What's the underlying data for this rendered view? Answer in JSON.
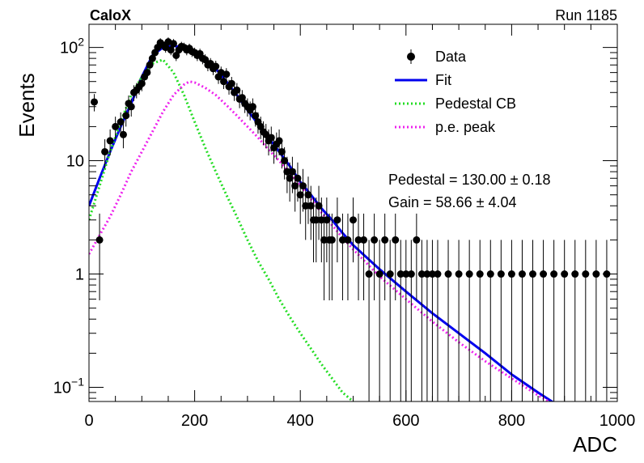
{
  "header": {
    "experiment": "CaloX",
    "run": "Run 1185"
  },
  "chart_data": {
    "type": "scatter",
    "xlabel": "ADC",
    "ylabel": "Events",
    "xlim": [
      0,
      1000
    ],
    "ylim": [
      0.075,
      160
    ],
    "yscale": "log",
    "grid": false,
    "legend_position": "top-right",
    "x_ticks": [
      "0",
      "200",
      "400",
      "600",
      "800",
      "1000"
    ],
    "y_ticks": [
      {
        "value": 100,
        "base": "10",
        "exp": "2"
      },
      {
        "value": 10,
        "label": "10"
      },
      {
        "value": 1,
        "label": "1"
      },
      {
        "value": 0.1,
        "base": "10",
        "exp": "−1"
      }
    ],
    "annotations": [
      "Pedestal = 130.00 ± 0.18",
      "Gain = 58.66 ± 4.04"
    ],
    "legend": [
      {
        "label": "Data",
        "style": "marker",
        "color": "#000000"
      },
      {
        "label": "Fit",
        "style": "solid",
        "color": "#0000ee"
      },
      {
        "label": "Pedestal CB",
        "style": "dotted",
        "color": "#22dd22"
      },
      {
        "label": "p.e. peak",
        "style": "dotted",
        "color": "#ee22ee"
      }
    ],
    "series": [
      {
        "name": "Data",
        "kind": "points",
        "points": [
          [
            10,
            33
          ],
          [
            20,
            2
          ],
          [
            30,
            12
          ],
          [
            40,
            15
          ],
          [
            50,
            20
          ],
          [
            60,
            22
          ],
          [
            65,
            17
          ],
          [
            70,
            25
          ],
          [
            75,
            32
          ],
          [
            80,
            30
          ],
          [
            85,
            40
          ],
          [
            90,
            42
          ],
          [
            95,
            45
          ],
          [
            100,
            48
          ],
          [
            105,
            55
          ],
          [
            110,
            60
          ],
          [
            115,
            70
          ],
          [
            120,
            80
          ],
          [
            125,
            90
          ],
          [
            130,
            100
          ],
          [
            135,
            110
          ],
          [
            140,
            105
          ],
          [
            145,
            100
          ],
          [
            150,
            112
          ],
          [
            155,
            95
          ],
          [
            160,
            108
          ],
          [
            165,
            85
          ],
          [
            170,
            95
          ],
          [
            175,
            102
          ],
          [
            180,
            100
          ],
          [
            185,
            95
          ],
          [
            190,
            98
          ],
          [
            195,
            92
          ],
          [
            200,
            90
          ],
          [
            205,
            85
          ],
          [
            210,
            88
          ],
          [
            215,
            80
          ],
          [
            220,
            78
          ],
          [
            225,
            70
          ],
          [
            230,
            72
          ],
          [
            235,
            65
          ],
          [
            240,
            68
          ],
          [
            245,
            55
          ],
          [
            250,
            60
          ],
          [
            255,
            50
          ],
          [
            260,
            58
          ],
          [
            265,
            45
          ],
          [
            270,
            48
          ],
          [
            275,
            40
          ],
          [
            280,
            42
          ],
          [
            285,
            35
          ],
          [
            290,
            36
          ],
          [
            295,
            32
          ],
          [
            300,
            30
          ],
          [
            305,
            28
          ],
          [
            310,
            30
          ],
          [
            315,
            25
          ],
          [
            320,
            22
          ],
          [
            325,
            20
          ],
          [
            330,
            18
          ],
          [
            335,
            17
          ],
          [
            340,
            15
          ],
          [
            345,
            16
          ],
          [
            350,
            13
          ],
          [
            355,
            14
          ],
          [
            360,
            15
          ],
          [
            365,
            12
          ],
          [
            370,
            10
          ],
          [
            375,
            8
          ],
          [
            380,
            7
          ],
          [
            385,
            8
          ],
          [
            390,
            6
          ],
          [
            395,
            7
          ],
          [
            400,
            5
          ],
          [
            405,
            6
          ],
          [
            410,
            4
          ],
          [
            415,
            5
          ],
          [
            420,
            4
          ],
          [
            425,
            3
          ],
          [
            430,
            3
          ],
          [
            435,
            4
          ],
          [
            440,
            3
          ],
          [
            445,
            2
          ],
          [
            450,
            3
          ],
          [
            455,
            2
          ],
          [
            460,
            2
          ],
          [
            470,
            3
          ],
          [
            480,
            2
          ],
          [
            490,
            2
          ],
          [
            500,
            3
          ],
          [
            510,
            2
          ],
          [
            520,
            2
          ],
          [
            530,
            1
          ],
          [
            540,
            2
          ],
          [
            550,
            1
          ],
          [
            560,
            2
          ],
          [
            570,
            1
          ],
          [
            580,
            2
          ],
          [
            590,
            1
          ],
          [
            600,
            1
          ],
          [
            610,
            1
          ],
          [
            620,
            2
          ],
          [
            630,
            1
          ],
          [
            640,
            1
          ],
          [
            650,
            1
          ],
          [
            660,
            1
          ],
          [
            680,
            1
          ],
          [
            700,
            1
          ],
          [
            720,
            1
          ],
          [
            740,
            1
          ],
          [
            760,
            1
          ],
          [
            780,
            1
          ],
          [
            800,
            1
          ],
          [
            820,
            1
          ],
          [
            840,
            1
          ],
          [
            860,
            1
          ],
          [
            880,
            1
          ],
          [
            900,
            1
          ],
          [
            920,
            1
          ],
          [
            940,
            1
          ],
          [
            960,
            1
          ],
          [
            980,
            1
          ]
        ]
      },
      {
        "name": "Fit",
        "kind": "curve",
        "points": [
          [
            0,
            4
          ],
          [
            20,
            7
          ],
          [
            40,
            12
          ],
          [
            60,
            20
          ],
          [
            80,
            32
          ],
          [
            100,
            55
          ],
          [
            120,
            85
          ],
          [
            140,
            100
          ],
          [
            160,
            103
          ],
          [
            180,
            100
          ],
          [
            200,
            93
          ],
          [
            220,
            80
          ],
          [
            240,
            65
          ],
          [
            260,
            50
          ],
          [
            280,
            38
          ],
          [
            300,
            28
          ],
          [
            320,
            21
          ],
          [
            340,
            16
          ],
          [
            360,
            12
          ],
          [
            380,
            9
          ],
          [
            400,
            6.5
          ],
          [
            420,
            5
          ],
          [
            440,
            3.8
          ],
          [
            460,
            3
          ],
          [
            480,
            2.3
          ],
          [
            500,
            1.8
          ],
          [
            550,
            1.1
          ],
          [
            600,
            0.7
          ],
          [
            650,
            0.45
          ],
          [
            700,
            0.3
          ],
          [
            750,
            0.2
          ],
          [
            800,
            0.13
          ],
          [
            850,
            0.09
          ],
          [
            880,
            0.073
          ]
        ]
      },
      {
        "name": "Pedestal CB",
        "kind": "curve",
        "points": [
          [
            0,
            3
          ],
          [
            20,
            6
          ],
          [
            40,
            12
          ],
          [
            60,
            22
          ],
          [
            80,
            38
          ],
          [
            100,
            55
          ],
          [
            120,
            72
          ],
          [
            140,
            78
          ],
          [
            160,
            60
          ],
          [
            180,
            38
          ],
          [
            200,
            22
          ],
          [
            220,
            13
          ],
          [
            240,
            8
          ],
          [
            260,
            5
          ],
          [
            280,
            3.2
          ],
          [
            300,
            2
          ],
          [
            320,
            1.3
          ],
          [
            340,
            0.9
          ],
          [
            360,
            0.6
          ],
          [
            380,
            0.42
          ],
          [
            400,
            0.3
          ],
          [
            420,
            0.22
          ],
          [
            440,
            0.16
          ],
          [
            460,
            0.12
          ],
          [
            480,
            0.09
          ],
          [
            500,
            0.075
          ]
        ]
      },
      {
        "name": "p.e. peak",
        "kind": "curve",
        "points": [
          [
            0,
            1.5
          ],
          [
            20,
            2.2
          ],
          [
            40,
            3.2
          ],
          [
            60,
            5
          ],
          [
            80,
            8
          ],
          [
            100,
            12
          ],
          [
            120,
            18
          ],
          [
            140,
            27
          ],
          [
            160,
            38
          ],
          [
            180,
            47
          ],
          [
            190,
            50
          ],
          [
            200,
            49
          ],
          [
            220,
            44
          ],
          [
            240,
            38
          ],
          [
            260,
            31
          ],
          [
            280,
            25
          ],
          [
            300,
            20
          ],
          [
            320,
            16
          ],
          [
            340,
            12.5
          ],
          [
            360,
            10
          ],
          [
            380,
            7.7
          ],
          [
            400,
            6
          ],
          [
            420,
            4.6
          ],
          [
            440,
            3.5
          ],
          [
            460,
            2.7
          ],
          [
            480,
            2.1
          ],
          [
            500,
            1.65
          ],
          [
            550,
            0.95
          ],
          [
            600,
            0.6
          ],
          [
            650,
            0.38
          ],
          [
            700,
            0.25
          ],
          [
            750,
            0.17
          ],
          [
            800,
            0.12
          ],
          [
            850,
            0.085
          ],
          [
            870,
            0.075
          ]
        ]
      }
    ]
  }
}
